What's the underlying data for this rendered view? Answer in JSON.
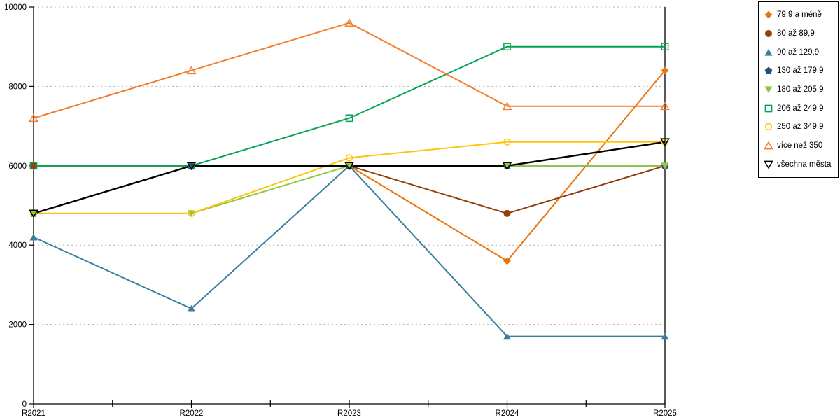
{
  "chart_data": {
    "type": "line",
    "title": "",
    "xlabel": "",
    "ylabel": "",
    "x_categories": [
      "R2021",
      "R2022",
      "R2023",
      "R2024",
      "R2025"
    ],
    "ylim": [
      0,
      10000
    ],
    "y_ticks": [
      0,
      2000,
      4000,
      6000,
      8000,
      10000
    ],
    "y_tick_labels": [
      "0",
      "2000",
      "4000",
      "6000",
      "8000",
      "10000"
    ],
    "grid": "horizontal dashed",
    "grid_color": "#b3b3b3",
    "axis_color": "#000000",
    "legend_position": "right",
    "legend_border_color": "#000000",
    "series": [
      {
        "name": "79,9 a méně",
        "marker": "diamond",
        "filled": true,
        "color": "#e8740a",
        "values": [
          6000,
          6000,
          6000,
          3600,
          8400
        ]
      },
      {
        "name": "80 až 89,9",
        "marker": "circle",
        "filled": true,
        "color": "#93400e",
        "values": [
          6000,
          6000,
          6000,
          4800,
          6000
        ]
      },
      {
        "name": "90 až 129,9",
        "marker": "triangle-up",
        "filled": true,
        "color": "#38809c",
        "values": [
          4200,
          2400,
          6000,
          1700,
          1700
        ]
      },
      {
        "name": "130 až 179,9",
        "marker": "pentagon",
        "filled": true,
        "color": "#21507d",
        "values": [
          4800,
          6000,
          6000,
          6000,
          6000
        ]
      },
      {
        "name": "180 až 205,9",
        "marker": "triangle-down",
        "filled": true,
        "color": "#90c83f",
        "values": [
          4800,
          4800,
          6000,
          6000,
          6000
        ]
      },
      {
        "name": "206 až 249,9",
        "marker": "square",
        "filled": false,
        "color": "#04a455",
        "values": [
          6000,
          6000,
          7200,
          9000,
          9000
        ]
      },
      {
        "name": "250 až 349,9",
        "marker": "circle",
        "filled": false,
        "color": "#fec40d",
        "values": [
          4800,
          4800,
          6200,
          6600,
          6600
        ]
      },
      {
        "name": "více než 350",
        "marker": "triangle-up",
        "filled": false,
        "color": "#f47d2b",
        "values": [
          7200,
          8400,
          9600,
          7500,
          7500
        ]
      },
      {
        "name": "všechna města",
        "marker": "triangle-down",
        "filled": false,
        "color": "#000000",
        "values": [
          4800,
          6000,
          6000,
          6000,
          6600
        ]
      }
    ]
  }
}
